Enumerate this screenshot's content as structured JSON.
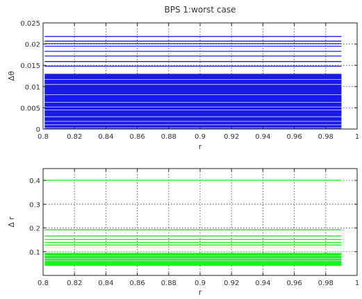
{
  "chart_data": [
    {
      "type": "line",
      "title": "BPS 1:worst case",
      "xlabel": "r",
      "ylabel": "Δθ",
      "xlim": [
        0.8,
        1.0
      ],
      "ylim": [
        0,
        0.025
      ],
      "xticks": [
        0.8,
        0.82,
        0.84,
        0.86,
        0.88,
        0.9,
        0.92,
        0.94,
        0.96,
        0.98,
        1
      ],
      "xtick_labels": [
        "0.8",
        "0.82",
        "0.84",
        "0.86",
        "0.88",
        "0.9",
        "0.92",
        "0.94",
        "0.96",
        "0.98",
        "1"
      ],
      "yticks": [
        0,
        0.005,
        0.01,
        0.015,
        0.02,
        0.025
      ],
      "ytick_labels": [
        "0",
        "0.005",
        "0.01",
        "0.015",
        "0.02",
        "0.025"
      ],
      "grid": true,
      "color": "#1a1ae6",
      "x_range": [
        0.801,
        0.99
      ],
      "series": [
        {
          "values_y": [
            0.0218,
            0.0207,
            0.0201,
            0.0195,
            0.0183,
            0.0172,
            0.0159,
            0.0148
          ]
        },
        {
          "fill_band": [
            0,
            0.013
          ]
        },
        {
          "gaps_y": [
            0.0003,
            0.001,
            0.0018,
            0.0029,
            0.0045,
            0.0052,
            0.0063,
            0.0081,
            0.0105,
            0.0117
          ]
        }
      ]
    },
    {
      "type": "line",
      "title": "",
      "xlabel": "r",
      "ylabel": "Δ r",
      "xlim": [
        0.8,
        1.0
      ],
      "ylim": [
        0,
        0.45
      ],
      "xticks": [
        0.8,
        0.82,
        0.84,
        0.86,
        0.88,
        0.9,
        0.92,
        0.94,
        0.96,
        0.98,
        1
      ],
      "xtick_labels": [
        "0.8",
        "0.82",
        "0.84",
        "0.86",
        "0.88",
        "0.9",
        "0.92",
        "0.94",
        "0.96",
        "0.98",
        "1"
      ],
      "yticks": [
        0.1,
        0.2,
        0.3,
        0.4
      ],
      "ytick_labels": [
        "0.1",
        "0.2",
        "0.3",
        "0.4"
      ],
      "grid": true,
      "color": "#22ee22",
      "x_range": [
        0.801,
        0.99
      ],
      "series": [
        {
          "values_y": [
            0.401,
            0.192,
            0.166,
            0.151,
            0.139,
            0.128
          ]
        },
        {
          "fill_band": [
            0.04,
            0.095
          ]
        },
        {
          "gaps_y": [
            0.062,
            0.071,
            0.083
          ]
        }
      ]
    }
  ]
}
